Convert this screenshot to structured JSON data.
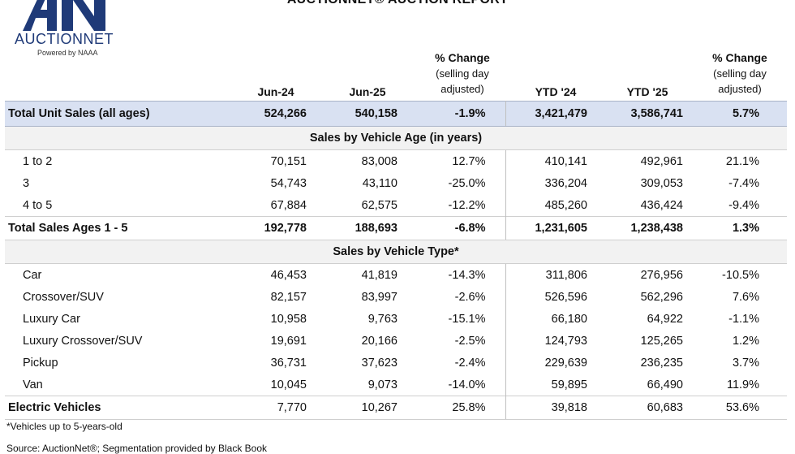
{
  "logo": {
    "wordmark": "AUCTIONNET",
    "tagline": "Powered by NAAA",
    "brand_color": "#1f3a78"
  },
  "report_title": "AUCTIONNET® AUCTION REPORT",
  "headers": {
    "jun24": "Jun-24",
    "jun25": "Jun-25",
    "pct1_line1": "% Change",
    "pct1_line2": "(selling day",
    "pct1_line3": "adjusted)",
    "ytd24": "YTD '24",
    "ytd25": "YTD '25",
    "pct2_line1": "% Change",
    "pct2_line2": "(selling day",
    "pct2_line3": "adjusted)"
  },
  "total_row": {
    "label": "Total Unit Sales (all ages)",
    "jun24": "524,266",
    "jun25": "540,158",
    "pct": "-1.9%",
    "ytd24": "3,421,479",
    "ytd25": "3,586,741",
    "ytd_pct": "5.7%"
  },
  "section_age": "Sales by Vehicle Age (in years)",
  "age_rows": [
    {
      "label": "1 to 2",
      "jun24": "70,151",
      "jun25": "83,008",
      "pct": "12.7%",
      "ytd24": "410,141",
      "ytd25": "492,961",
      "ytd_pct": "21.1%"
    },
    {
      "label": "3",
      "jun24": "54,743",
      "jun25": "43,110",
      "pct": "-25.0%",
      "ytd24": "336,204",
      "ytd25": "309,053",
      "ytd_pct": "-7.4%"
    },
    {
      "label": "4 to 5",
      "jun24": "67,884",
      "jun25": "62,575",
      "pct": "-12.2%",
      "ytd24": "485,260",
      "ytd25": "436,424",
      "ytd_pct": "-9.4%"
    }
  ],
  "age_total": {
    "label": "Total Sales Ages 1 - 5",
    "jun24": "192,778",
    "jun25": "188,693",
    "pct": "-6.8%",
    "ytd24": "1,231,605",
    "ytd25": "1,238,438",
    "ytd_pct": "1.3%"
  },
  "section_type": "Sales by Vehicle Type*",
  "type_rows": [
    {
      "label": "Car",
      "jun24": "46,453",
      "jun25": "41,819",
      "pct": "-14.3%",
      "ytd24": "311,806",
      "ytd25": "276,956",
      "ytd_pct": "-10.5%"
    },
    {
      "label": "Crossover/SUV",
      "jun24": "82,157",
      "jun25": "83,997",
      "pct": "-2.6%",
      "ytd24": "526,596",
      "ytd25": "562,296",
      "ytd_pct": "7.6%"
    },
    {
      "label": "Luxury Car",
      "jun24": "10,958",
      "jun25": "9,763",
      "pct": "-15.1%",
      "ytd24": "66,180",
      "ytd25": "64,922",
      "ytd_pct": "-1.1%"
    },
    {
      "label": "Luxury Crossover/SUV",
      "jun24": "19,691",
      "jun25": "20,166",
      "pct": "-2.5%",
      "ytd24": "124,793",
      "ytd25": "125,265",
      "ytd_pct": "1.2%"
    },
    {
      "label": "Pickup",
      "jun24": "36,731",
      "jun25": "37,623",
      "pct": "-2.4%",
      "ytd24": "229,639",
      "ytd25": "236,235",
      "ytd_pct": "3.7%"
    },
    {
      "label": "Van",
      "jun24": "10,045",
      "jun25": "9,073",
      "pct": "-14.0%",
      "ytd24": "59,895",
      "ytd25": "66,490",
      "ytd_pct": "11.9%"
    }
  ],
  "ev_row": {
    "label": "Electric Vehicles",
    "jun24": "7,770",
    "jun25": "10,267",
    "pct": "25.8%",
    "ytd24": "39,818",
    "ytd25": "60,683",
    "ytd_pct": "53.6%"
  },
  "footnote": "*Vehicles up to 5-years-old",
  "source": "Source: AuctionNet®; Segmentation provided by Black Book"
}
